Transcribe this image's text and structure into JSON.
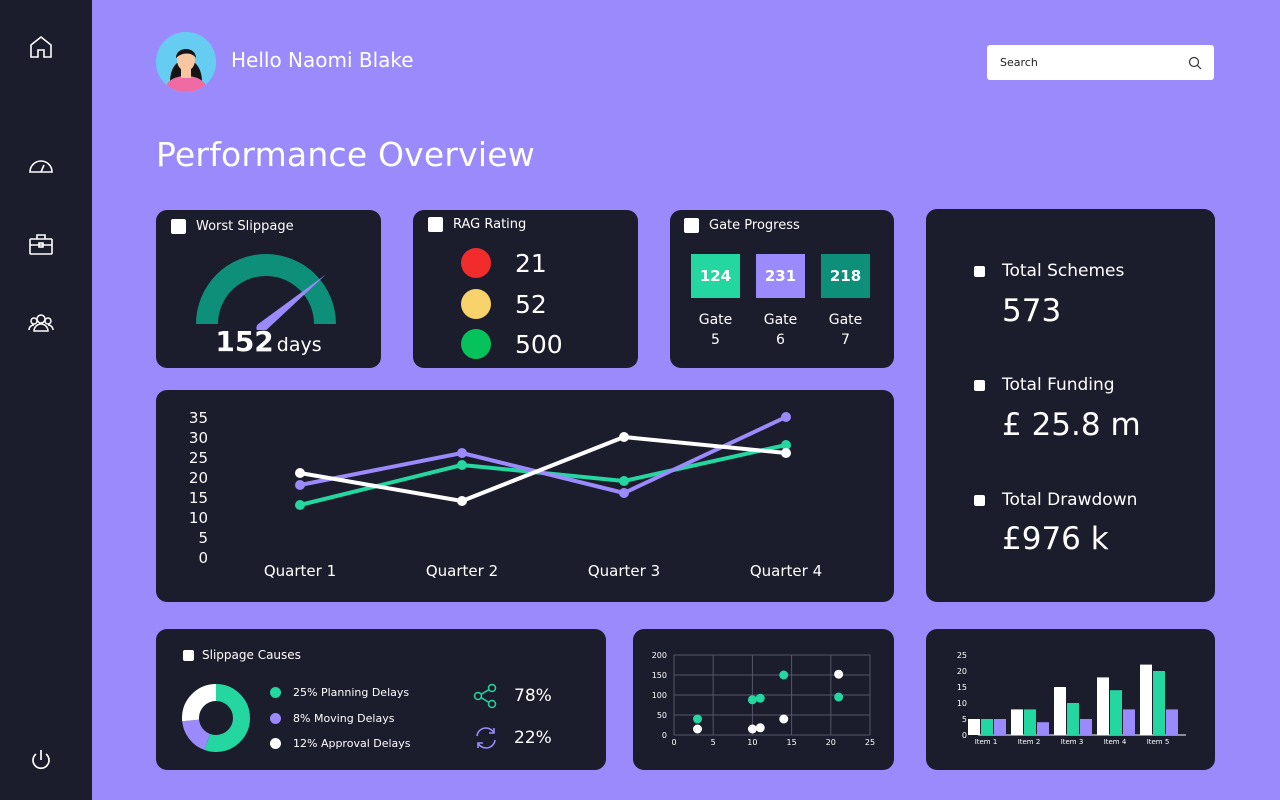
{
  "user": {
    "greeting": "Hello Naomi Blake"
  },
  "search": {
    "placeholder": "Search"
  },
  "page_title": "Performance Overview",
  "sidebar": {
    "items": [
      "home-icon",
      "dashboard-icon",
      "briefcase-icon",
      "team-icon",
      "power-icon"
    ]
  },
  "worst_slippage": {
    "title": "Worst Slippage",
    "value": "152",
    "unit": "days",
    "gauge_fraction": 0.78
  },
  "rag": {
    "title": "RAG Rating",
    "items": [
      {
        "color": "#f22c2c",
        "value": "21"
      },
      {
        "color": "#f8d26a",
        "value": "52"
      },
      {
        "color": "#05c25a",
        "value": "500"
      }
    ]
  },
  "gate_progress": {
    "title": "Gate Progress",
    "gates": [
      {
        "value": "124",
        "label": "Gate",
        "number": "5",
        "color": "#24d6a0"
      },
      {
        "value": "231",
        "label": "Gate",
        "number": "6",
        "color": "#9b8afb"
      },
      {
        "value": "218",
        "label": "Gate",
        "number": "7",
        "color": "#0e8f79"
      }
    ]
  },
  "totals": {
    "schemes": {
      "label": "Total Schemes",
      "value": "573"
    },
    "funding": {
      "label": "Total Funding",
      "value": "£ 25.8 m"
    },
    "drawdown": {
      "label": "Total Drawdown",
      "value": "£976 k"
    }
  },
  "slippage_causes": {
    "title": "Slippage Causes",
    "legend": [
      {
        "label": "25% Planning Delays",
        "color": "#24d6a0"
      },
      {
        "label": "8% Moving Delays",
        "color": "#9b8afb"
      },
      {
        "label": "12% Approval Delays",
        "color": "#ffffff"
      }
    ],
    "donut": [
      {
        "value": 25,
        "color": "#24d6a0"
      },
      {
        "value": 8,
        "color": "#9b8afb"
      },
      {
        "value": 12,
        "color": "#ffffff"
      }
    ],
    "share_stat": "78%",
    "cycle_stat": "22%"
  },
  "chart_data": [
    {
      "type": "line",
      "categories": [
        "Quarter 1",
        "Quarter 2",
        "Quarter 3",
        "Quarter 4"
      ],
      "ylim": [
        0,
        35
      ],
      "yticks": [
        "35",
        "30",
        "25",
        "20",
        "15",
        "10",
        "5",
        "0"
      ],
      "series": [
        {
          "color": "#24d6a0",
          "values": [
            13,
            23,
            19,
            28
          ]
        },
        {
          "color": "#9b8afb",
          "values": [
            18,
            26,
            16,
            35
          ]
        },
        {
          "color": "#ffffff",
          "values": [
            21,
            14,
            30,
            26
          ]
        }
      ]
    },
    {
      "type": "scatter",
      "xlim": [
        0,
        25
      ],
      "ylim": [
        0,
        200
      ],
      "xticks": [
        "0",
        "5",
        "10",
        "15",
        "20",
        "25"
      ],
      "yticks": [
        "200",
        "150",
        "100",
        "50",
        "0"
      ],
      "series": [
        {
          "color": "#24d6a0",
          "points": [
            [
              3,
              40
            ],
            [
              10,
              88
            ],
            [
              11,
              92
            ],
            [
              14,
              150
            ],
            [
              21,
              95
            ]
          ]
        },
        {
          "color": "#ffffff",
          "points": [
            [
              3,
              15
            ],
            [
              10,
              15
            ],
            [
              11,
              18
            ],
            [
              14,
              40
            ],
            [
              21,
              152
            ]
          ]
        }
      ]
    },
    {
      "type": "bar",
      "categories": [
        "Item 1",
        "Item 2",
        "Item 3",
        "Item 4",
        "Item 5"
      ],
      "ylim": [
        0,
        25
      ],
      "yticks": [
        "25",
        "20",
        "15",
        "10",
        "5",
        "0"
      ],
      "series": [
        {
          "color": "#ffffff",
          "values": [
            5,
            8,
            15,
            18,
            22
          ]
        },
        {
          "color": "#24d6a0",
          "values": [
            5,
            8,
            10,
            14,
            20
          ]
        },
        {
          "color": "#9b8afb",
          "values": [
            5,
            4,
            5,
            8,
            8
          ]
        }
      ]
    }
  ]
}
